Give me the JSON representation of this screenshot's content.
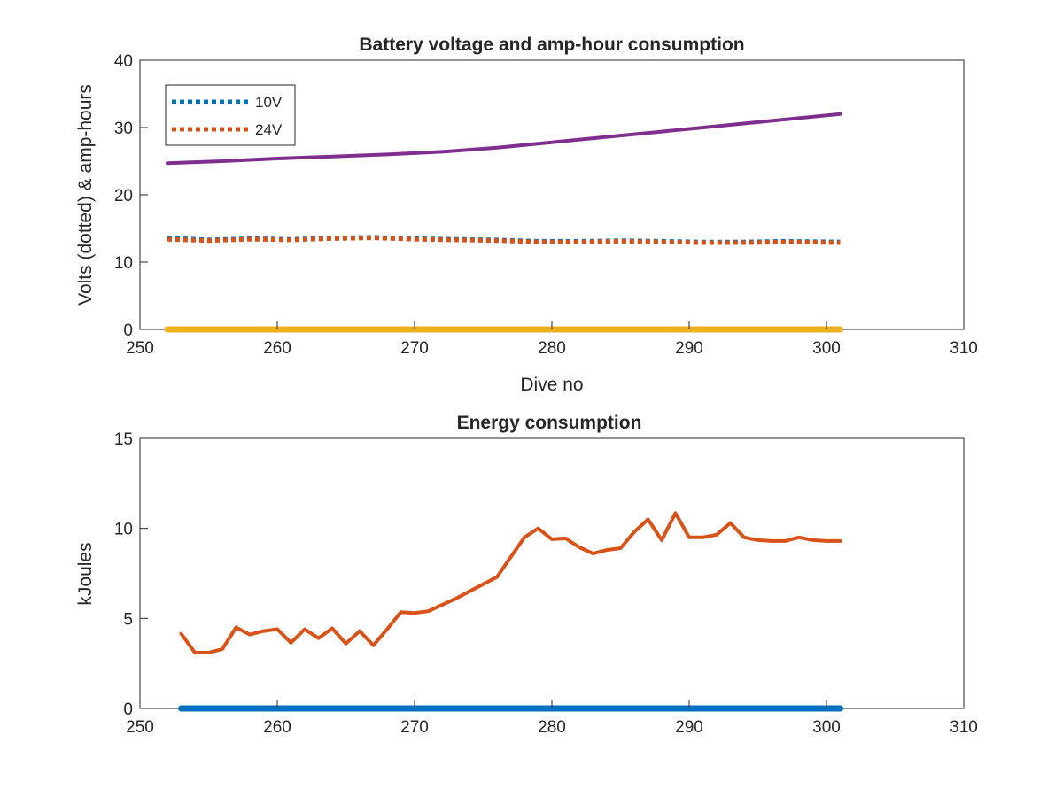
{
  "chart_data": [
    {
      "type": "line",
      "title": "Battery voltage and amp-hour consumption",
      "xlabel": "Dive no",
      "ylabel": "Volts (dotted) & amp-hours",
      "xlim": [
        250,
        310
      ],
      "ylim": [
        0,
        40
      ],
      "xticks": [
        "250",
        "260",
        "270",
        "280",
        "290",
        "300",
        "310"
      ],
      "yticks": [
        "0",
        "10",
        "20",
        "30",
        "40"
      ],
      "grid": false,
      "legend_position": "top-left",
      "series": [
        {
          "name": "10V",
          "style": "dotted",
          "color": "#0072BD",
          "x": [
            252,
            255,
            258,
            261,
            264,
            267,
            270,
            273,
            276,
            279,
            282,
            285,
            288,
            291,
            294,
            297,
            301
          ],
          "y": [
            13.6,
            13.3,
            13.5,
            13.4,
            13.6,
            13.7,
            13.5,
            13.4,
            13.3,
            13.1,
            13.1,
            13.2,
            13.1,
            13.0,
            13.0,
            13.1,
            13.0
          ]
        },
        {
          "name": "24V",
          "style": "dotted",
          "color": "#D95319",
          "x": [
            252,
            255,
            258,
            261,
            264,
            267,
            270,
            273,
            276,
            279,
            282,
            285,
            288,
            291,
            294,
            297,
            301
          ],
          "y": [
            13.4,
            13.2,
            13.4,
            13.3,
            13.5,
            13.6,
            13.4,
            13.3,
            13.2,
            13.0,
            13.0,
            13.1,
            13.0,
            12.9,
            12.9,
            13.0,
            12.9
          ]
        },
        {
          "style": "solid",
          "color": "#7E2F8E",
          "x": [
            252,
            256,
            260,
            264,
            268,
            272,
            276,
            280,
            284,
            288,
            292,
            296,
            301
          ],
          "y": [
            24.7,
            25.0,
            25.4,
            25.7,
            26.0,
            26.4,
            27.0,
            27.8,
            28.6,
            29.4,
            30.2,
            31.0,
            32.0
          ]
        },
        {
          "style": "solid",
          "color": "#EDB120",
          "x": [
            252,
            301
          ],
          "y": [
            0,
            0
          ]
        }
      ]
    },
    {
      "type": "line",
      "title": "Energy consumption",
      "xlabel": "",
      "ylabel": "kJoules",
      "xlim": [
        250,
        310
      ],
      "ylim": [
        0,
        15
      ],
      "xticks": [
        "250",
        "260",
        "270",
        "280",
        "290",
        "300",
        "310"
      ],
      "yticks": [
        "0",
        "5",
        "10",
        "15"
      ],
      "grid": false,
      "series": [
        {
          "style": "solid",
          "color": "#0072BD",
          "x": [
            253,
            301
          ],
          "y": [
            0,
            0
          ]
        },
        {
          "style": "solid",
          "color": "#D95319",
          "x": [
            253,
            254,
            255,
            256,
            257,
            258,
            259,
            260,
            261,
            262,
            263,
            264,
            265,
            266,
            267,
            268,
            269,
            270,
            271,
            272,
            273,
            274,
            275,
            276,
            277,
            278,
            279,
            280,
            281,
            282,
            283,
            284,
            285,
            286,
            287,
            288,
            289,
            290,
            291,
            292,
            293,
            294,
            295,
            296,
            297,
            298,
            299,
            300,
            301
          ],
          "y": [
            4.15,
            3.1,
            3.1,
            3.3,
            4.5,
            4.1,
            4.3,
            4.4,
            3.65,
            4.4,
            3.9,
            4.45,
            3.6,
            4.3,
            3.5,
            4.4,
            5.35,
            5.3,
            5.4,
            5.75,
            6.1,
            6.5,
            6.9,
            7.3,
            8.4,
            9.5,
            10.0,
            9.4,
            9.45,
            8.95,
            8.6,
            8.8,
            8.9,
            9.8,
            10.5,
            9.35,
            10.85,
            9.5,
            9.5,
            9.65,
            10.3,
            9.5,
            9.35,
            9.3,
            9.3,
            9.5,
            9.35,
            9.3,
            9.3
          ]
        }
      ]
    }
  ]
}
